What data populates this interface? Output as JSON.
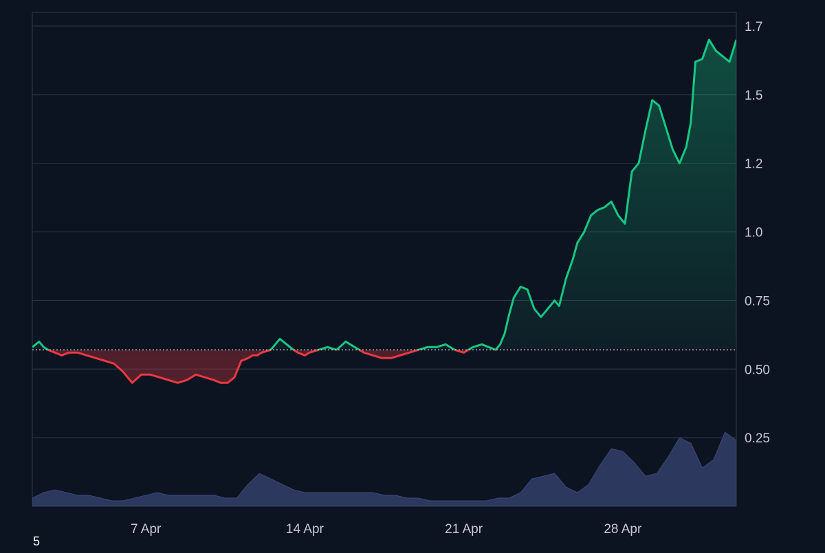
{
  "chart_data": {
    "type": "area",
    "title": "",
    "xlabel": "",
    "ylabel": "",
    "ylim": [
      0,
      1.8
    ],
    "y_ticks": [
      "0.25",
      "0.50",
      "0.75",
      "1.0",
      "1.2",
      "1.5",
      "1.7"
    ],
    "y_tick_values": [
      0.25,
      0.5,
      0.75,
      1.0,
      1.25,
      1.5,
      1.75
    ],
    "x_ticks": [
      "7 Apr",
      "14 Apr",
      "21 Apr",
      "28 Apr"
    ],
    "x_tick_days": [
      7,
      14,
      21,
      28
    ],
    "xlim_days": [
      2.0,
      33.0
    ],
    "baseline": 0.57,
    "grid": true,
    "legend": "none",
    "colors": {
      "background": "#0d1421",
      "grid": "#2a3342",
      "up": "#16c784",
      "down": "#ea3943",
      "volume": "#2f3a63",
      "baseline": "#c8ccd4"
    },
    "series": [
      {
        "kind": "price",
        "x": [
          2.0,
          2.3,
          2.5,
          2.7,
          3.0,
          3.3,
          3.6,
          4.0,
          4.4,
          4.8,
          5.2,
          5.6,
          6.0,
          6.4,
          6.8,
          7.2,
          7.6,
          8.0,
          8.4,
          8.8,
          9.2,
          9.6,
          10.0,
          10.3,
          10.6,
          10.9,
          11.2,
          11.5,
          11.7,
          11.9,
          12.1,
          12.5,
          12.9,
          13.2,
          13.5,
          13.7,
          14.0,
          14.2,
          14.6,
          15.0,
          15.4,
          15.8,
          16.2,
          16.6,
          17.0,
          17.4,
          17.8,
          18.2,
          18.6,
          19.0,
          19.4,
          19.8,
          20.2,
          20.6,
          21.0,
          21.4,
          21.8,
          22.1,
          22.4,
          22.6,
          22.8,
          23.0,
          23.2,
          23.5,
          23.8,
          24.1,
          24.4,
          24.7,
          25.0,
          25.2,
          25.5,
          25.8,
          26.0,
          26.3,
          26.6,
          26.9,
          27.2,
          27.5,
          27.8,
          28.1,
          28.4,
          28.7,
          29.0,
          29.3,
          29.6,
          29.9,
          30.2,
          30.5,
          30.8,
          31.0,
          31.2,
          31.5,
          31.8,
          32.1,
          32.4,
          32.7,
          33.0
        ],
        "values": [
          0.58,
          0.6,
          0.58,
          0.57,
          0.56,
          0.55,
          0.56,
          0.56,
          0.55,
          0.54,
          0.53,
          0.52,
          0.49,
          0.45,
          0.48,
          0.48,
          0.47,
          0.46,
          0.45,
          0.46,
          0.48,
          0.47,
          0.46,
          0.45,
          0.45,
          0.47,
          0.53,
          0.54,
          0.55,
          0.55,
          0.56,
          0.57,
          0.61,
          0.59,
          0.57,
          0.56,
          0.55,
          0.56,
          0.57,
          0.58,
          0.57,
          0.6,
          0.58,
          0.56,
          0.55,
          0.54,
          0.54,
          0.55,
          0.56,
          0.57,
          0.58,
          0.58,
          0.59,
          0.57,
          0.56,
          0.58,
          0.59,
          0.58,
          0.57,
          0.59,
          0.63,
          0.7,
          0.76,
          0.8,
          0.79,
          0.72,
          0.69,
          0.72,
          0.75,
          0.73,
          0.83,
          0.9,
          0.96,
          1.0,
          1.06,
          1.08,
          1.09,
          1.11,
          1.06,
          1.03,
          1.22,
          1.25,
          1.37,
          1.48,
          1.46,
          1.38,
          1.3,
          1.25,
          1.31,
          1.4,
          1.62,
          1.63,
          1.7,
          1.66,
          1.64,
          1.62,
          1.7
        ]
      },
      {
        "kind": "volume",
        "x": [
          2.0,
          2.5,
          3.0,
          3.5,
          4.0,
          4.5,
          5.0,
          5.5,
          6.0,
          6.5,
          7.0,
          7.5,
          8.0,
          8.5,
          9.0,
          9.5,
          10.0,
          10.5,
          11.0,
          11.5,
          12.0,
          12.5,
          13.0,
          13.5,
          14.0,
          14.5,
          15.0,
          15.5,
          16.0,
          16.5,
          17.0,
          17.5,
          18.0,
          18.5,
          19.0,
          19.5,
          20.0,
          20.5,
          21.0,
          21.5,
          22.0,
          22.5,
          23.0,
          23.5,
          24.0,
          24.5,
          25.0,
          25.5,
          26.0,
          26.5,
          27.0,
          27.5,
          28.0,
          28.5,
          29.0,
          29.5,
          30.0,
          30.5,
          31.0,
          31.5,
          32.0,
          32.5,
          33.0
        ],
        "values": [
          0.03,
          0.05,
          0.06,
          0.05,
          0.04,
          0.04,
          0.03,
          0.02,
          0.02,
          0.03,
          0.04,
          0.05,
          0.04,
          0.04,
          0.04,
          0.04,
          0.04,
          0.03,
          0.03,
          0.08,
          0.12,
          0.1,
          0.08,
          0.06,
          0.05,
          0.05,
          0.05,
          0.05,
          0.05,
          0.05,
          0.05,
          0.04,
          0.04,
          0.03,
          0.03,
          0.02,
          0.02,
          0.02,
          0.02,
          0.02,
          0.02,
          0.03,
          0.03,
          0.05,
          0.1,
          0.11,
          0.12,
          0.07,
          0.05,
          0.08,
          0.15,
          0.21,
          0.2,
          0.16,
          0.11,
          0.12,
          0.18,
          0.25,
          0.23,
          0.14,
          0.17,
          0.27,
          0.24
        ]
      }
    ]
  },
  "footnote": "5"
}
